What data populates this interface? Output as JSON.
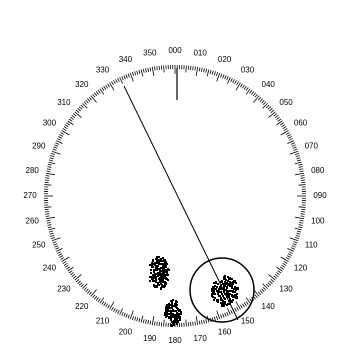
{
  "bearing_labels": [
    "000",
    "010",
    "020",
    "030",
    "040",
    "050",
    "060",
    "070",
    "080",
    "090",
    "100",
    "110",
    "120",
    "130",
    "140",
    "150",
    "160",
    "170",
    "180",
    "190",
    "200",
    "210",
    "220",
    "230",
    "240",
    "250",
    "260",
    "270",
    "280",
    "290",
    "300",
    "310",
    "320",
    "330",
    "340",
    "350"
  ]
}
